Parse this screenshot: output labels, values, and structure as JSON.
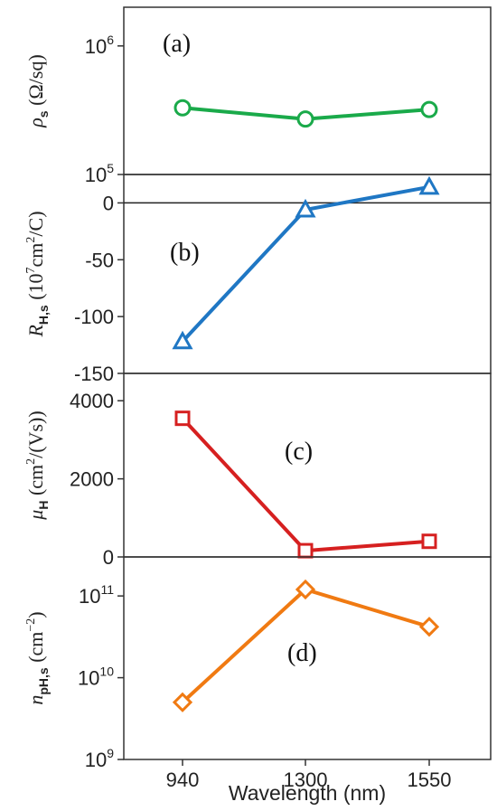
{
  "chart_data": [
    {
      "type": "line",
      "panel_label": "(a)",
      "ylabel": {
        "symbol": "ρ",
        "sub": "s",
        "rest": " (Ω/sq)"
      },
      "yscale": "log",
      "ylim": [
        100000,
        2000000
      ],
      "yticks": [
        {
          "value": 1000000,
          "base": "10",
          "exp": "6"
        },
        {
          "value": 100000,
          "base": "10",
          "exp": "5"
        }
      ],
      "x": [
        940,
        1300,
        1550
      ],
      "values": [
        330000,
        270000,
        320000
      ],
      "marker": "circle",
      "color": "#1aaa4a"
    },
    {
      "type": "line",
      "panel_label": "(b)",
      "ylabel": {
        "symbol": "R",
        "sub": "H,s",
        "rest_a": " (10",
        "sup": "7",
        "rest_b": "cm",
        "sup2": "2",
        "rest_c": "/C)"
      },
      "yscale": "linear",
      "ylim": [
        -150,
        25
      ],
      "yticks": [
        {
          "value": 0,
          "label": "0"
        },
        {
          "value": -50,
          "label": "-50"
        },
        {
          "value": -100,
          "label": "-100"
        },
        {
          "value": -150,
          "label": "-150"
        }
      ],
      "zero_line": true,
      "x": [
        940,
        1300,
        1550
      ],
      "values": [
        -122,
        -6,
        14
      ],
      "marker": "triangle",
      "color": "#1f77c4"
    },
    {
      "type": "line",
      "panel_label": "(c)",
      "ylabel": {
        "symbol": "μ",
        "sub": "H",
        "rest_a": " (cm",
        "sup": "2",
        "rest_b": "/(Vs))"
      },
      "yscale": "linear",
      "ylim": [
        0,
        4700
      ],
      "yticks": [
        {
          "value": 4000,
          "label": "4000"
        },
        {
          "value": 2000,
          "label": "2000"
        },
        {
          "value": 0,
          "label": "0"
        }
      ],
      "x": [
        940,
        1300,
        1550
      ],
      "values": [
        3550,
        160,
        400
      ],
      "marker": "square",
      "color": "#d62020"
    },
    {
      "type": "line",
      "panel_label": "(d)",
      "ylabel": {
        "symbol": "n",
        "sub": "pH,s",
        "rest_a": " (cm",
        "sup": "−2",
        "rest_b": ")"
      },
      "yscale": "log",
      "ylim": [
        1000000000,
        300000000000
      ],
      "yticks": [
        {
          "value": 100000000000,
          "base": "10",
          "exp": "11"
        },
        {
          "value": 10000000000,
          "base": "10",
          "exp": "10"
        },
        {
          "value": 1000000000,
          "base": "10",
          "exp": "9"
        }
      ],
      "x": [
        940,
        1300,
        1550
      ],
      "values": [
        5000000000,
        120000000000,
        42000000000
      ],
      "marker": "diamond",
      "color": "#f07a12"
    }
  ],
  "xaxis": {
    "label": "Wavelength (nm)",
    "categories": [
      "940",
      "1300",
      "1550"
    ]
  },
  "grid": false
}
